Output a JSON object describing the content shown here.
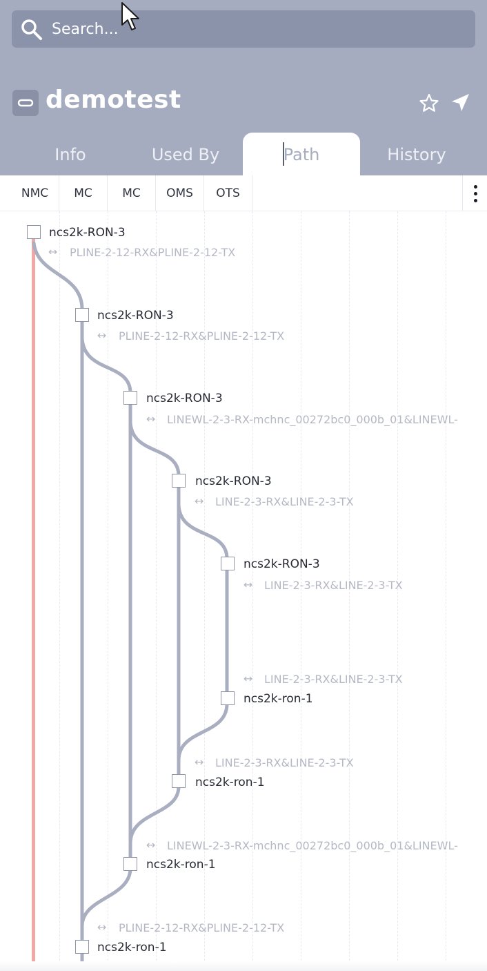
{
  "search": {
    "placeholder": "Search..."
  },
  "header": {
    "title": "demotest",
    "link_icon": "link-icon",
    "star_icon": "star-icon",
    "locate_icon": "navigate-arrow-icon"
  },
  "tabs": [
    {
      "label": "Info",
      "active": false
    },
    {
      "label": "Used By",
      "active": false
    },
    {
      "label": "Path",
      "active": true
    },
    {
      "label": "History",
      "active": false
    }
  ],
  "columns": [
    "NMC",
    "MC",
    "MC",
    "OMS",
    "OTS"
  ],
  "path_nodes": [
    {
      "name": "ncs2k-RON-3",
      "port": "PLINE-2-12-RX&PLINE-2-12-TX"
    },
    {
      "name": "ncs2k-RON-3",
      "port": "PLINE-2-12-RX&PLINE-2-12-TX"
    },
    {
      "name": "ncs2k-RON-3",
      "port": "LINEWL-2-3-RX-mchnc_00272bc0_000b_01&LINEWL-"
    },
    {
      "name": "ncs2k-RON-3",
      "port": "LINE-2-3-RX&LINE-2-3-TX"
    },
    {
      "name": "ncs2k-RON-3",
      "port": "LINE-2-3-RX&LINE-2-3-TX"
    },
    {
      "name": "ncs2k-ron-1",
      "port": "LINE-2-3-RX&LINE-2-3-TX"
    },
    {
      "name": "ncs2k-ron-1",
      "port": "LINE-2-3-RX&LINE-2-3-TX"
    },
    {
      "name": "ncs2k-ron-1",
      "port": "LINEWL-2-3-RX-mchnc_00272bc0_000b_01&LINEWL-"
    },
    {
      "name": "ncs2k-ron-1",
      "port": "PLINE-2-12-RX&PLINE-2-12-TX"
    }
  ],
  "port_arrow": "↔",
  "colors": {
    "header_bg": "#a5acc0",
    "search_bg": "#8b93ab",
    "main_path": "#f1a7a3",
    "branch_path": "#a9aec0"
  }
}
